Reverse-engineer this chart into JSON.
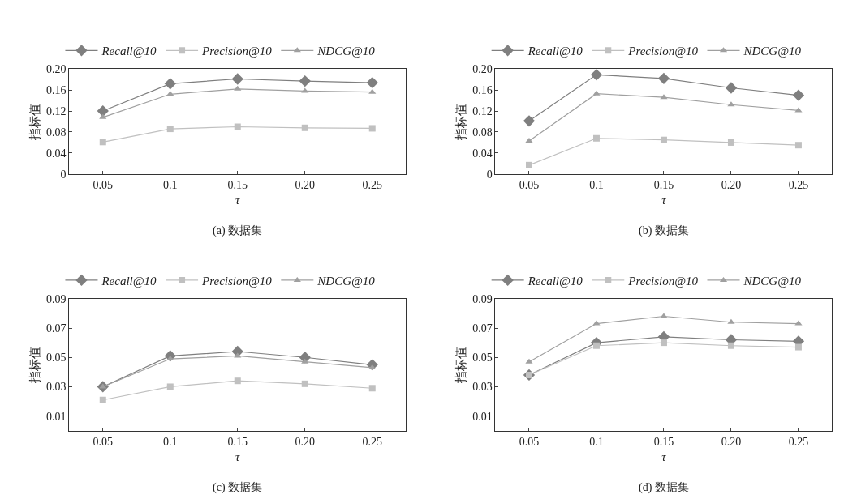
{
  "chart_data": [
    {
      "type": "line",
      "title": "(a) 数据集",
      "xlabel": "τ",
      "ylabel": "指标值",
      "categories": [
        "0.05",
        "0.1",
        "0.15",
        "0.20",
        "0.25"
      ],
      "ylim": [
        0,
        0.2
      ],
      "yticks": [
        0,
        0.04,
        0.08,
        0.12,
        0.16,
        {
          "value": 0.2,
          "label": "0.20"
        }
      ],
      "legend": "top",
      "series": [
        {
          "name": "Recall@10",
          "color": "#7f7f7f",
          "marker": "diamond",
          "values": [
            0.12,
            0.172,
            0.181,
            0.177,
            0.174
          ]
        },
        {
          "name": "Precision@10",
          "color": "#c0c0c0",
          "marker": "square",
          "values": [
            0.061,
            0.086,
            0.09,
            0.088,
            0.087
          ]
        },
        {
          "name": "NDCG@10",
          "color": "#a0a0a0",
          "marker": "triangle",
          "values": [
            0.108,
            0.152,
            0.162,
            0.158,
            0.156
          ]
        }
      ]
    },
    {
      "type": "line",
      "title": "(b) 数据集",
      "xlabel": "τ",
      "ylabel": "指标值",
      "categories": [
        "0.05",
        "0.1",
        "0.15",
        "0.20",
        "0.25"
      ],
      "ylim": [
        0,
        0.2
      ],
      "yticks": [
        0,
        0.04,
        0.08,
        0.12,
        0.16,
        {
          "value": 0.2,
          "label": "0.20"
        }
      ],
      "legend": "top",
      "series": [
        {
          "name": "Recall@10",
          "color": "#7f7f7f",
          "marker": "diamond",
          "values": [
            0.101,
            0.189,
            0.182,
            0.164,
            0.15
          ]
        },
        {
          "name": "Precision@10",
          "color": "#c0c0c0",
          "marker": "square",
          "values": [
            0.017,
            0.068,
            0.065,
            0.06,
            0.055
          ]
        },
        {
          "name": "NDCG@10",
          "color": "#a0a0a0",
          "marker": "triangle",
          "values": [
            0.063,
            0.153,
            0.146,
            0.132,
            0.121
          ]
        }
      ]
    },
    {
      "type": "line",
      "title": "(c) 数据集",
      "xlabel": "τ",
      "ylabel": "指标值",
      "categories": [
        "0.05",
        "0.1",
        "0.15",
        "0.20",
        "0.25"
      ],
      "ylim": [
        0,
        0.09
      ],
      "yticks": [
        0.01,
        0.03,
        0.05,
        0.07,
        0.09
      ],
      "legend": "top",
      "series": [
        {
          "name": "Recall@10",
          "color": "#7f7f7f",
          "marker": "diamond",
          "values": [
            0.03,
            0.051,
            0.054,
            0.05,
            0.045
          ]
        },
        {
          "name": "Precision@10",
          "color": "#c0c0c0",
          "marker": "square",
          "values": [
            0.021,
            0.03,
            0.034,
            0.032,
            0.029
          ]
        },
        {
          "name": "NDCG@10",
          "color": "#a0a0a0",
          "marker": "triangle",
          "values": [
            0.03,
            0.049,
            0.051,
            0.047,
            0.043
          ]
        }
      ]
    },
    {
      "type": "line",
      "title": "(d) 数据集",
      "xlabel": "τ",
      "ylabel": "指标值",
      "categories": [
        "0.05",
        "0.1",
        "0.15",
        "0.20",
        "0.25"
      ],
      "ylim": [
        0,
        0.09
      ],
      "yticks": [
        0.01,
        0.03,
        0.05,
        0.07,
        0.09
      ],
      "legend": "top",
      "series": [
        {
          "name": "Recall@10",
          "color": "#7f7f7f",
          "marker": "diamond",
          "values": [
            0.038,
            0.06,
            0.064,
            0.062,
            0.061
          ]
        },
        {
          "name": "Precision@10",
          "color": "#c0c0c0",
          "marker": "square",
          "values": [
            0.038,
            0.058,
            0.06,
            0.058,
            0.057
          ]
        },
        {
          "name": "NDCG@10",
          "color": "#a0a0a0",
          "marker": "triangle",
          "values": [
            0.047,
            0.073,
            0.078,
            0.074,
            0.073
          ]
        }
      ]
    }
  ]
}
